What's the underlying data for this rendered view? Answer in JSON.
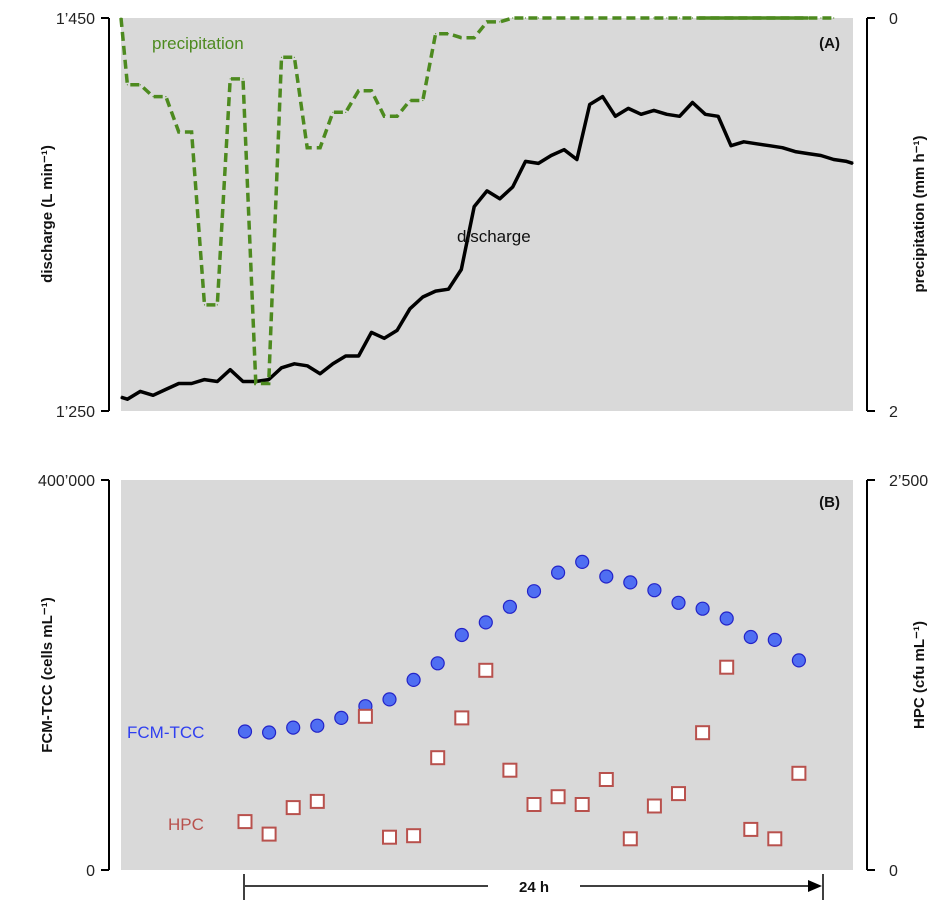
{
  "colors": {
    "plot_bg": "#d9d9d9",
    "discharge": "#000000",
    "precipitation": "#4d8a1f",
    "fcm": "#4f6ef2",
    "fcm_edge": "#2323c8",
    "hpc": "#b8514d",
    "hpc_fill": "#ffffff"
  },
  "chart_data": [
    {
      "type": "line",
      "panel_label": "(A)",
      "ylabel": "discharge (L min⁻¹)",
      "y2label": "precipitation (mm h⁻¹)",
      "ylim": [
        1250,
        1450
      ],
      "y2lim": [
        2,
        0
      ],
      "y2_inverted": true,
      "yticks": [
        1250,
        1450
      ],
      "ytick_labels": [
        "1’250",
        "1’450"
      ],
      "y2ticks": [
        0,
        2
      ],
      "y2tick_labels": [
        "0",
        "2"
      ],
      "xlim": [
        0,
        57
      ],
      "series": [
        {
          "name": "discharge",
          "axis": "left",
          "x": [
            0,
            0.5,
            1.5,
            2.5,
            3.5,
            4.5,
            5.5,
            6.5,
            7.5,
            8.5,
            9.5,
            10.5,
            11.5,
            12.5,
            13.5,
            14.5,
            15.5,
            16.5,
            17.5,
            18.5,
            19.5,
            20.5,
            21.5,
            22.5,
            23.5,
            24.5,
            25.5,
            26.5,
            27.5,
            28.5,
            29.5,
            30.5,
            31.5,
            32.5,
            33.5,
            34.5,
            35.5,
            36.5,
            37.5,
            38.5,
            39.5,
            40.5,
            41.5,
            42.5,
            43.5,
            44.5,
            45.5,
            46.5,
            47.5,
            48.5,
            49.5,
            50.5,
            51.5,
            52.5,
            53.5,
            54.5,
            55.5,
            56.5,
            57
          ],
          "values": [
            1257,
            1256,
            1260,
            1258,
            1261,
            1264,
            1264,
            1266,
            1265,
            1271,
            1265,
            1265,
            1266,
            1272,
            1274,
            1273,
            1269,
            1274,
            1278,
            1278,
            1290,
            1287,
            1291,
            1302,
            1308,
            1311,
            1312,
            1322,
            1354,
            1362,
            1358,
            1364,
            1377,
            1376,
            1380,
            1383,
            1378,
            1406,
            1410,
            1400,
            1404,
            1401,
            1403,
            1401,
            1400,
            1407,
            1401,
            1400,
            1385,
            1387,
            1386,
            1385,
            1384,
            1382,
            1381,
            1380,
            1378,
            1377,
            1376
          ]
        },
        {
          "name": "precipitation",
          "axis": "right",
          "x": [
            0,
            0.5,
            1.5,
            2.5,
            3.5,
            4.5,
            5.5,
            6.5,
            7.5,
            8.5,
            9.5,
            10.5,
            11.5,
            12.5,
            13.5,
            14.5,
            15.5,
            16.5,
            17.5,
            18.5,
            19.5,
            20.5,
            21.5,
            22.5,
            23.5,
            24.5,
            25.5,
            26.5,
            27.5,
            28.5,
            29.5,
            30.5,
            31.5,
            32.5,
            33.5,
            34.5,
            35.5,
            36.5,
            37.5,
            38.5,
            39.5,
            40.5,
            41.5,
            42.5,
            43.5,
            44.5,
            45.5,
            46.5,
            47.5,
            48.5,
            49.5,
            50.5,
            51.5,
            52.5,
            53.5,
            54.5,
            55.5,
            56.5,
            57
          ],
          "values": [
            0,
            0.34,
            0.34,
            0.4,
            0.4,
            0.58,
            0.58,
            1.46,
            1.46,
            0.31,
            0.31,
            1.86,
            1.86,
            0.2,
            0.2,
            0.66,
            0.66,
            0.48,
            0.48,
            0.37,
            0.37,
            0.5,
            0.5,
            0.42,
            0.42,
            0.08,
            0.08,
            0.1,
            0.1,
            0.02,
            0.02,
            0,
            0,
            0,
            0,
            0,
            0,
            0,
            0,
            0,
            0,
            0,
            0,
            0,
            0,
            0,
            0,
            0,
            0,
            0,
            0,
            0,
            0,
            0,
            0,
            0,
            0,
            null,
            null
          ]
        }
      ],
      "annotations": {
        "precipitation": "precipitation",
        "discharge": "discharge"
      }
    },
    {
      "type": "scatter",
      "panel_label": "(B)",
      "ylabel": "FCM-TCC (cells mL⁻¹)",
      "y2label": "HPC (cfu mL⁻¹)",
      "ylim": [
        0,
        400000
      ],
      "y2lim": [
        0,
        2500
      ],
      "yticks": [
        0,
        400000
      ],
      "ytick_labels": [
        "0",
        "400’000"
      ],
      "y2ticks": [
        0,
        2500
      ],
      "y2tick_labels": [
        "0",
        "2’500"
      ],
      "xlim": [
        0,
        24
      ],
      "duration_label": "24 h",
      "series": [
        {
          "name": "FCM-TCC",
          "axis": "left",
          "marker": "circle",
          "x": [
            0,
            1,
            2,
            3,
            4,
            5,
            6,
            7,
            8,
            9,
            10,
            11,
            12,
            13,
            14,
            15,
            16,
            17,
            18,
            19,
            20,
            21,
            22,
            23
          ],
          "values": [
            142000,
            141000,
            146000,
            148000,
            156000,
            168000,
            175000,
            195000,
            212000,
            241000,
            254000,
            270000,
            286000,
            305000,
            316000,
            301000,
            295000,
            287000,
            274000,
            268000,
            258000,
            239000,
            236000,
            215000
          ]
        },
        {
          "name": "HPC",
          "axis": "right",
          "marker": "square",
          "x": [
            0,
            1,
            2,
            3,
            5,
            6,
            7,
            8,
            9,
            10,
            11,
            12,
            13,
            14,
            15,
            16,
            17,
            18,
            19,
            20,
            21,
            22,
            23
          ],
          "values": [
            310,
            230,
            400,
            440,
            985,
            210,
            220,
            720,
            975,
            1280,
            640,
            420,
            470,
            420,
            580,
            200,
            410,
            490,
            880,
            1300,
            260,
            200,
            620
          ]
        }
      ],
      "annotations": {
        "fcm": "FCM-TCC",
        "hpc": "HPC"
      }
    }
  ]
}
